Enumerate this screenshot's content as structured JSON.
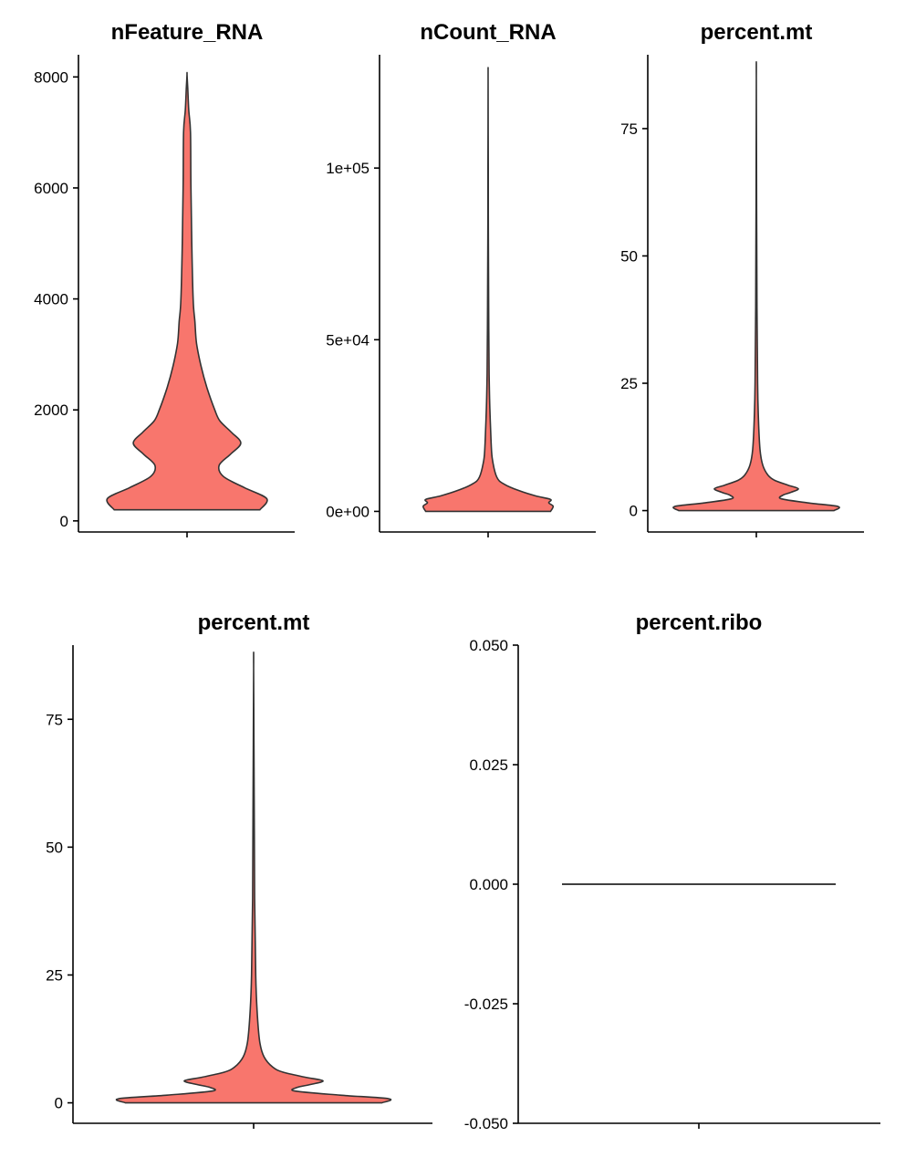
{
  "figure": {
    "background": "#ffffff",
    "fill_color": "#F8766D",
    "outline_color": "#333333"
  },
  "chart_data": [
    {
      "type": "violin",
      "title": "nFeature_RNA",
      "xlabel": "",
      "ylabel": "",
      "ylim": [
        -200,
        8400
      ],
      "yticks": [
        0,
        2000,
        4000,
        6000,
        8000
      ],
      "ytick_labels": [
        "0",
        "2000",
        "4000",
        "6000",
        "8000"
      ],
      "grid": false,
      "legend": "none",
      "density": [
        [
          200,
          0.84
        ],
        [
          400,
          0.92
        ],
        [
          600,
          0.66
        ],
        [
          800,
          0.42
        ],
        [
          1000,
          0.37
        ],
        [
          1200,
          0.5
        ],
        [
          1400,
          0.62
        ],
        [
          1600,
          0.51
        ],
        [
          1800,
          0.38
        ],
        [
          2000,
          0.32
        ],
        [
          2400,
          0.23
        ],
        [
          2800,
          0.16
        ],
        [
          3200,
          0.11
        ],
        [
          3600,
          0.09
        ],
        [
          4000,
          0.07
        ],
        [
          5000,
          0.055
        ],
        [
          6000,
          0.045
        ],
        [
          7000,
          0.04
        ],
        [
          7400,
          0.02
        ],
        [
          7800,
          0.008
        ],
        [
          8050,
          0.0
        ]
      ]
    },
    {
      "type": "violin",
      "title": "nCount_RNA",
      "xlabel": "",
      "ylabel": "",
      "ylim": [
        -6000,
        133000
      ],
      "yticks": [
        0,
        50000,
        100000
      ],
      "ytick_labels": [
        "0e+00",
        "5e+04",
        "1e+05"
      ],
      "grid": false,
      "legend": "none",
      "density": [
        [
          0,
          0.72
        ],
        [
          1500,
          0.75
        ],
        [
          2500,
          0.7
        ],
        [
          3500,
          0.72
        ],
        [
          4500,
          0.55
        ],
        [
          6000,
          0.36
        ],
        [
          8000,
          0.18
        ],
        [
          10000,
          0.1
        ],
        [
          15000,
          0.05
        ],
        [
          20000,
          0.035
        ],
        [
          30000,
          0.02
        ],
        [
          40000,
          0.012
        ],
        [
          60000,
          0.006
        ],
        [
          80000,
          0.003
        ],
        [
          100000,
          0.002
        ],
        [
          126000,
          0.0
        ]
      ]
    },
    {
      "type": "violin",
      "title": "percent.mt",
      "xlabel": "",
      "ylabel": "",
      "ylim": [
        -4.2,
        89.5
      ],
      "yticks": [
        0,
        25,
        50,
        75
      ],
      "ytick_labels": [
        "0",
        "25",
        "50",
        "75"
      ],
      "grid": false,
      "legend": "none",
      "density": [
        [
          0,
          0.74
        ],
        [
          0.8,
          0.78
        ],
        [
          1.5,
          0.5
        ],
        [
          2.3,
          0.24
        ],
        [
          3.0,
          0.25
        ],
        [
          3.6,
          0.33
        ],
        [
          4.3,
          0.4
        ],
        [
          5.0,
          0.3
        ],
        [
          6.0,
          0.17
        ],
        [
          7.0,
          0.11
        ],
        [
          9.0,
          0.06
        ],
        [
          12.0,
          0.035
        ],
        [
          18.0,
          0.02
        ],
        [
          25.0,
          0.012
        ],
        [
          40.0,
          0.006
        ],
        [
          60.0,
          0.003
        ],
        [
          85.0,
          0.0
        ]
      ]
    },
    {
      "type": "violin",
      "title": "percent.mt",
      "xlabel": "",
      "ylabel": "",
      "ylim": [
        -4.0,
        89.5
      ],
      "yticks": [
        0,
        25,
        50,
        75
      ],
      "ytick_labels": [
        "0",
        "25",
        "50",
        "75"
      ],
      "grid": false,
      "legend": "none",
      "density": [
        [
          0,
          0.74
        ],
        [
          0.8,
          0.78
        ],
        [
          1.5,
          0.5
        ],
        [
          2.3,
          0.24
        ],
        [
          3.0,
          0.25
        ],
        [
          3.6,
          0.33
        ],
        [
          4.3,
          0.4
        ],
        [
          5.0,
          0.3
        ],
        [
          6.0,
          0.17
        ],
        [
          7.0,
          0.11
        ],
        [
          9.0,
          0.06
        ],
        [
          12.0,
          0.035
        ],
        [
          18.0,
          0.02
        ],
        [
          25.0,
          0.012
        ],
        [
          40.0,
          0.006
        ],
        [
          60.0,
          0.003
        ],
        [
          85.0,
          0.0
        ]
      ]
    },
    {
      "type": "violin",
      "title": "percent.ribo",
      "xlabel": "",
      "ylabel": "",
      "ylim": [
        -0.05,
        0.05
      ],
      "yticks": [
        -0.05,
        -0.025,
        0,
        0.025,
        0.05
      ],
      "ytick_labels": [
        "-0.050",
        "-0.025",
        "0.000",
        "0.025",
        "0.050"
      ],
      "grid": false,
      "legend": "none",
      "flat_value": 0.0
    }
  ]
}
